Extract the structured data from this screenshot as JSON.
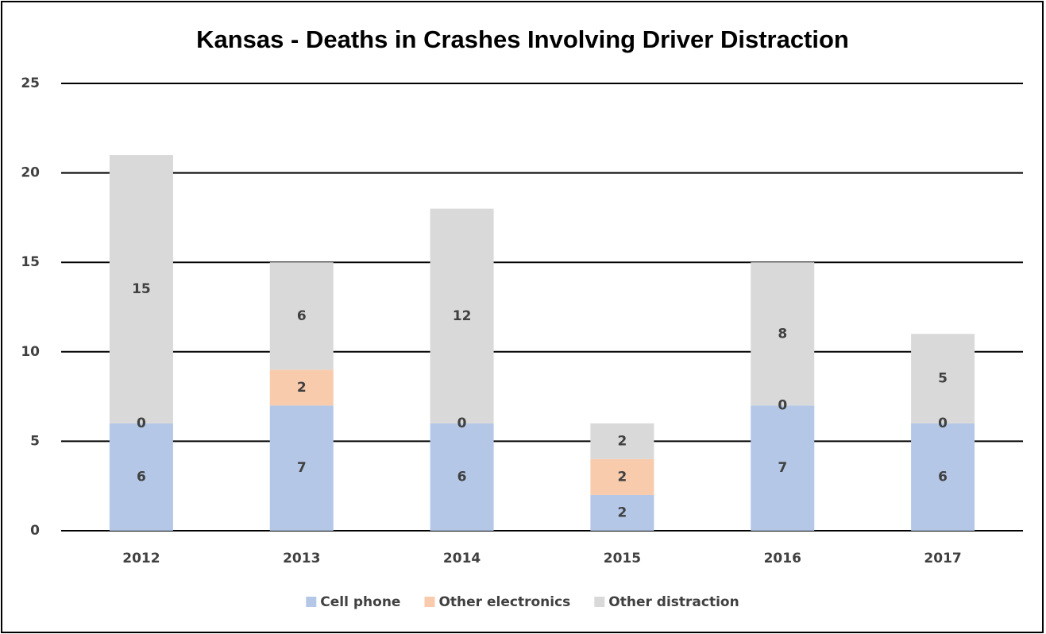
{
  "chart_data": {
    "type": "stacked_bar",
    "title": "Kansas - Deaths in Crashes Involving Driver Distraction",
    "categories": [
      "2012",
      "2013",
      "2014",
      "2015",
      "2016",
      "2017"
    ],
    "series": [
      {
        "name": "Cell phone",
        "color": "#b4c7e7",
        "values": [
          6,
          7,
          6,
          2,
          7,
          6
        ]
      },
      {
        "name": "Other electronics",
        "color": "#f8cbad",
        "values": [
          0,
          2,
          0,
          2,
          0,
          0
        ]
      },
      {
        "name": "Other distraction",
        "color": "#d9d9d9",
        "values": [
          15,
          6,
          12,
          2,
          8,
          5
        ]
      }
    ],
    "ylim": [
      0,
      25
    ],
    "yticks": [
      0,
      5,
      10,
      15,
      20,
      25
    ],
    "grid": true,
    "legend": "bottom"
  }
}
